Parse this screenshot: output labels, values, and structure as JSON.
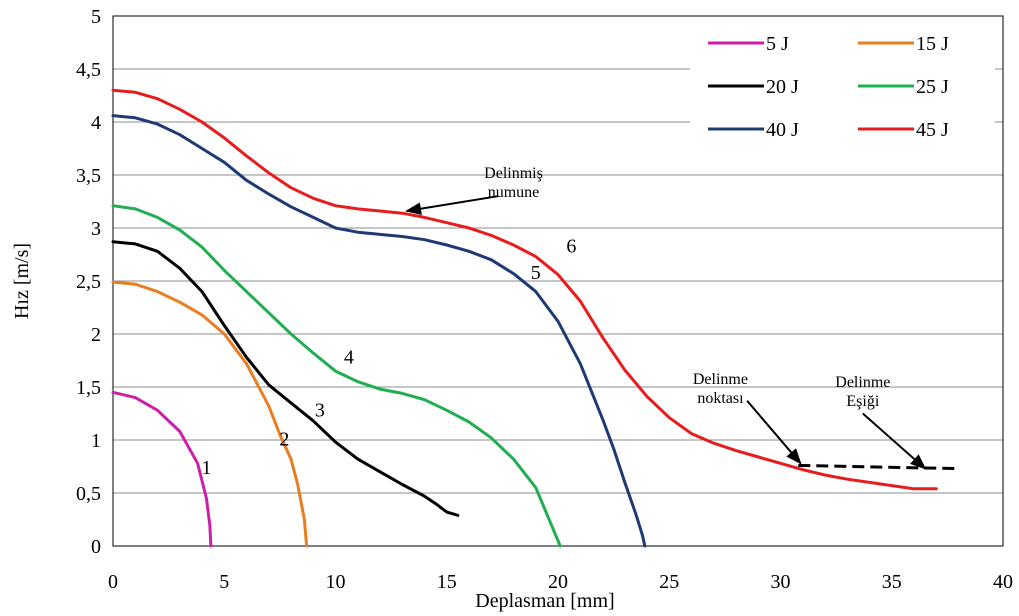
{
  "chart_data": {
    "type": "line",
    "xlabel": "Deplasman [mm]",
    "ylabel": "Hız [m/s]",
    "xlim": [
      0,
      40
    ],
    "ylim": [
      0,
      5
    ],
    "xticks": [
      "0",
      "5",
      "10",
      "15",
      "20",
      "25",
      "30",
      "35",
      "40"
    ],
    "yticks": [
      "0",
      "0,5",
      "1",
      "1,5",
      "2",
      "2,5",
      "3",
      "3,5",
      "4",
      "4,5",
      "5"
    ],
    "grid": "horizontal",
    "legend_position": "top-right",
    "series": [
      {
        "name": "5 J",
        "color": "#cc1fa8",
        "label": "1",
        "x": [
          0,
          1,
          2,
          3,
          3.8,
          4.2,
          4.35,
          4.4
        ],
        "y": [
          1.45,
          1.4,
          1.28,
          1.08,
          0.78,
          0.45,
          0.2,
          0
        ]
      },
      {
        "name": "15 J",
        "color": "#e87d22",
        "label": "2",
        "x": [
          0,
          1,
          2,
          3,
          4,
          5,
          6,
          7,
          7.5,
          8,
          8.3,
          8.6,
          8.7
        ],
        "y": [
          2.49,
          2.47,
          2.4,
          2.3,
          2.18,
          2.0,
          1.72,
          1.32,
          1.05,
          0.82,
          0.58,
          0.25,
          0
        ]
      },
      {
        "name": "20 J",
        "color": "#000000",
        "label": "3",
        "x": [
          0,
          1,
          2,
          3,
          4,
          5,
          6,
          7,
          8,
          9,
          10,
          11,
          12,
          13,
          14,
          14.5,
          15,
          15.5
        ],
        "y": [
          2.87,
          2.85,
          2.78,
          2.62,
          2.4,
          2.08,
          1.78,
          1.52,
          1.35,
          1.18,
          0.98,
          0.82,
          0.7,
          0.58,
          0.47,
          0.4,
          0.32,
          0.29
        ]
      },
      {
        "name": "25 J",
        "color": "#1fae52",
        "label": "4",
        "x": [
          0,
          1,
          2,
          3,
          4,
          5,
          6,
          7,
          8,
          9,
          10,
          11,
          12,
          13,
          14,
          15,
          16,
          17,
          18,
          19,
          19.5,
          20,
          20.1
        ],
        "y": [
          3.21,
          3.18,
          3.1,
          2.98,
          2.82,
          2.6,
          2.4,
          2.2,
          2.0,
          1.82,
          1.65,
          1.55,
          1.48,
          1.44,
          1.38,
          1.28,
          1.17,
          1.02,
          0.82,
          0.55,
          0.3,
          0.05,
          0
        ]
      },
      {
        "name": "40 J",
        "color": "#1f3a72",
        "label": "5",
        "x": [
          0,
          1,
          2,
          3,
          4,
          5,
          6,
          7,
          8,
          9,
          10,
          11,
          12,
          13,
          14,
          15,
          16,
          17,
          18,
          19,
          20,
          21,
          22,
          22.5,
          23,
          23.5,
          23.8,
          23.9
        ],
        "y": [
          4.06,
          4.04,
          3.98,
          3.88,
          3.75,
          3.62,
          3.45,
          3.32,
          3.2,
          3.1,
          3.0,
          2.96,
          2.94,
          2.92,
          2.89,
          2.84,
          2.78,
          2.7,
          2.57,
          2.4,
          2.12,
          1.72,
          1.2,
          0.92,
          0.6,
          0.3,
          0.1,
          0
        ]
      },
      {
        "name": "45 J",
        "color": "#e81c1c",
        "label": "6",
        "x": [
          0,
          1,
          2,
          3,
          4,
          5,
          6,
          7,
          8,
          9,
          10,
          11,
          12,
          13,
          14,
          15,
          16,
          17,
          18,
          19,
          20,
          21,
          22,
          23,
          24,
          25,
          26,
          27,
          28,
          29,
          30,
          31,
          32,
          33,
          34,
          35,
          36,
          37
        ],
        "y": [
          4.3,
          4.28,
          4.22,
          4.12,
          4.0,
          3.85,
          3.68,
          3.52,
          3.38,
          3.28,
          3.21,
          3.18,
          3.16,
          3.14,
          3.1,
          3.05,
          3.0,
          2.93,
          2.84,
          2.73,
          2.56,
          2.31,
          1.97,
          1.66,
          1.41,
          1.21,
          1.06,
          0.97,
          0.9,
          0.84,
          0.78,
          0.72,
          0.67,
          0.63,
          0.6,
          0.57,
          0.54,
          0.54
        ]
      }
    ],
    "threshold_line": {
      "x": [
        30.8,
        38
      ],
      "y": [
        0.76,
        0.73
      ],
      "style": "dashed",
      "color": "#000000"
    },
    "annotations": [
      {
        "lines": [
          "Delinmiş",
          "numune"
        ],
        "text_at": [
          18,
          3.47
        ],
        "arrow_from": [
          17.3,
          3.3
        ],
        "arrow_to": [
          13.2,
          3.16
        ]
      },
      {
        "lines": [
          "Delinme",
          "noktası"
        ],
        "text_at": [
          27.3,
          1.53
        ],
        "arrow_from": [
          28.5,
          1.37
        ],
        "arrow_to": [
          30.9,
          0.78
        ]
      },
      {
        "lines": [
          "Delinme",
          "Eşiği"
        ],
        "text_at": [
          33.7,
          1.5
        ],
        "arrow_from": [
          33.7,
          1.25
        ],
        "arrow_to": [
          36.5,
          0.73
        ]
      }
    ],
    "curve_labels": [
      {
        "text": "1",
        "x": 4.2,
        "y": 0.68
      },
      {
        "text": "2",
        "x": 7.7,
        "y": 0.95
      },
      {
        "text": "3",
        "x": 9.3,
        "y": 1.22
      },
      {
        "text": "4",
        "x": 10.6,
        "y": 1.72
      },
      {
        "text": "5",
        "x": 19.0,
        "y": 2.52
      },
      {
        "text": "6",
        "x": 20.6,
        "y": 2.77
      }
    ]
  }
}
